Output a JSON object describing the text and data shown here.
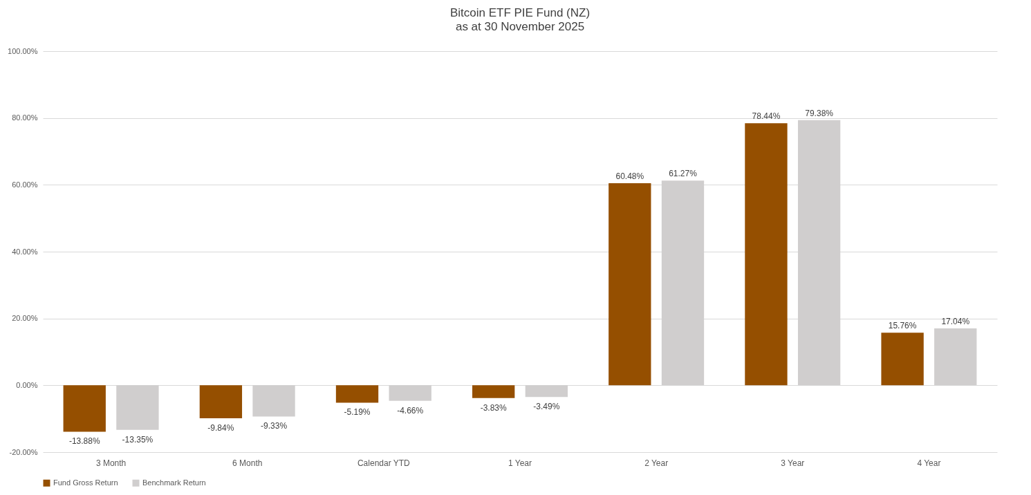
{
  "chart_data": {
    "type": "bar",
    "title": "Bitcoin ETF PIE Fund (NZ)",
    "subtitle": "as at 30 November 2025",
    "categories": [
      "3 Month",
      "6 Month",
      "Calendar YTD",
      "1 Year",
      "2 Year",
      "3 Year",
      "4 Year"
    ],
    "series": [
      {
        "name": "Fund Gross Return",
        "color": "#954f00",
        "values": [
          -13.88,
          -9.84,
          -5.19,
          -3.83,
          60.48,
          78.44,
          15.76
        ],
        "value_labels": [
          "-13.88%",
          "-9.84%",
          "-5.19%",
          "-3.83%",
          "60.48%",
          "78.44%",
          "15.76%"
        ]
      },
      {
        "name": "Benchmark Return",
        "color": "#d0cece",
        "values": [
          -13.35,
          -9.33,
          -4.66,
          -3.49,
          61.27,
          79.38,
          17.04
        ],
        "value_labels": [
          "-13.35%",
          "-9.33%",
          "-4.66%",
          "-3.49%",
          "61.27%",
          "79.38%",
          "17.04%"
        ]
      }
    ],
    "ylim": [
      -20,
      100
    ],
    "yticks": [
      {
        "value": -20,
        "label": "-20.00%"
      },
      {
        "value": 0,
        "label": "0.00%"
      },
      {
        "value": 20,
        "label": "20.00%"
      },
      {
        "value": 40,
        "label": "40.00%"
      },
      {
        "value": 60,
        "label": "60.00%"
      },
      {
        "value": 80,
        "label": "80.00%"
      },
      {
        "value": 100,
        "label": "100.00%"
      }
    ],
    "grid": "y",
    "legend": "bottom"
  }
}
